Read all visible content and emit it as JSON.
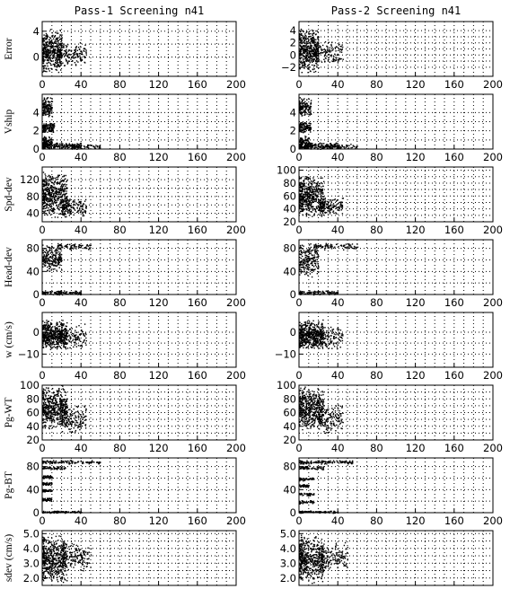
{
  "chart_data": {
    "type": "scatter",
    "columns": [
      {
        "title": "Pass-1 Screening n41"
      },
      {
        "title": "Pass-2 Screening n41"
      }
    ],
    "x_ticks": [
      "0",
      "40",
      "80",
      "120",
      "160",
      "200"
    ],
    "xlim": [
      0,
      200
    ],
    "grid": true,
    "rows": [
      {
        "ylabel": "Error",
        "panels": [
          {
            "ylim": [
              -3,
              5.5
            ],
            "y_ticks": [
              {
                "v": 4,
                "t": "4"
              },
              {
                "v": 0,
                "t": "0"
              }
            ],
            "clusters": [
              {
                "n": 420,
                "x": [
                  0,
                  20
                ],
                "y": [
                  -2.5,
                  4.5
                ]
              },
              {
                "n": 160,
                "x": [
                  15,
                  45
                ],
                "y": [
                  -1.5,
                  2.5
                ]
              }
            ]
          },
          {
            "ylim": [
              -3.5,
              5.5
            ],
            "y_ticks": [
              {
                "v": 4,
                "t": "4"
              },
              {
                "v": 2,
                "t": "2"
              },
              {
                "v": 0,
                "t": "0"
              },
              {
                "v": -2,
                "t": "−2"
              }
            ],
            "clusters": [
              {
                "n": 420,
                "x": [
                  0,
                  20
                ],
                "y": [
                  -3,
                  4.5
                ]
              },
              {
                "n": 160,
                "x": [
                  15,
                  45
                ],
                "y": [
                  -1.5,
                  2.5
                ]
              }
            ]
          }
        ]
      },
      {
        "ylabel": "Vship",
        "panels": [
          {
            "ylim": [
              0,
              6
            ],
            "y_ticks": [
              {
                "v": 0,
                "t": "0"
              },
              {
                "v": 2,
                "t": "2"
              },
              {
                "v": 4,
                "t": "4"
              }
            ],
            "clusters": [
              {
                "n": 140,
                "x": [
                  0,
                  10
                ],
                "y": [
                  3.5,
                  5.8
                ]
              },
              {
                "n": 110,
                "x": [
                  0,
                  12
                ],
                "y": [
                  1.8,
                  3.0
                ]
              },
              {
                "n": 90,
                "x": [
                  0,
                  10
                ],
                "y": [
                  0.3,
                  1.5
                ]
              },
              {
                "n": 200,
                "x": [
                  0,
                  40
                ],
                "y": [
                  0.0,
                  0.8
                ]
              },
              {
                "n": 60,
                "x": [
                  30,
                  60
                ],
                "y": [
                  0.0,
                  0.6
                ]
              }
            ]
          },
          {
            "ylim": [
              0,
              6
            ],
            "y_ticks": [
              {
                "v": 0,
                "t": "0"
              },
              {
                "v": 2,
                "t": "2"
              },
              {
                "v": 4,
                "t": "4"
              }
            ],
            "clusters": [
              {
                "n": 140,
                "x": [
                  0,
                  12
                ],
                "y": [
                  3.5,
                  5.8
                ]
              },
              {
                "n": 110,
                "x": [
                  0,
                  12
                ],
                "y": [
                  1.8,
                  3.0
                ]
              },
              {
                "n": 90,
                "x": [
                  0,
                  10
                ],
                "y": [
                  0.3,
                  1.5
                ]
              },
              {
                "n": 200,
                "x": [
                  0,
                  40
                ],
                "y": [
                  0.0,
                  0.8
                ]
              },
              {
                "n": 60,
                "x": [
                  30,
                  60
                ],
                "y": [
                  0.0,
                  0.6
                ]
              }
            ]
          }
        ]
      },
      {
        "ylabel": "Spd-dev",
        "panels": [
          {
            "ylim": [
              20,
              150
            ],
            "y_ticks": [
              {
                "v": 40,
                "t": "40"
              },
              {
                "v": 80,
                "t": "80"
              },
              {
                "v": 120,
                "t": "120"
              }
            ],
            "clusters": [
              {
                "n": 480,
                "x": [
                  0,
                  25
                ],
                "y": [
                  30,
                  140
                ]
              },
              {
                "n": 160,
                "x": [
                  20,
                  45
                ],
                "y": [
                  30,
                  80
                ]
              }
            ]
          },
          {
            "ylim": [
              20,
              105
            ],
            "y_ticks": [
              {
                "v": 20,
                "t": "20"
              },
              {
                "v": 40,
                "t": "40"
              },
              {
                "v": 60,
                "t": "60"
              },
              {
                "v": 80,
                "t": "80"
              },
              {
                "v": 100,
                "t": "100"
              }
            ],
            "clusters": [
              {
                "n": 480,
                "x": [
                  0,
                  25
                ],
                "y": [
                  25,
                  95
                ]
              },
              {
                "n": 160,
                "x": [
                  20,
                  45
                ],
                "y": [
                  30,
                  60
                ]
              }
            ]
          }
        ]
      },
      {
        "ylabel": "Head-dev",
        "panels": [
          {
            "ylim": [
              0,
              95
            ],
            "y_ticks": [
              {
                "v": 0,
                "t": "0"
              },
              {
                "v": 40,
                "t": "40"
              },
              {
                "v": 80,
                "t": "80"
              }
            ],
            "clusters": [
              {
                "n": 220,
                "x": [
                  0,
                  20
                ],
                "y": [
                  40,
                  90
                ]
              },
              {
                "n": 80,
                "x": [
                  15,
                  50
                ],
                "y": [
                  78,
                  90
                ]
              },
              {
                "n": 120,
                "x": [
                  0,
                  40
                ],
                "y": [
                  0,
                  8
                ]
              }
            ]
          },
          {
            "ylim": [
              0,
              95
            ],
            "y_ticks": [
              {
                "v": 0,
                "t": "0"
              },
              {
                "v": 40,
                "t": "40"
              },
              {
                "v": 80,
                "t": "80"
              }
            ],
            "clusters": [
              {
                "n": 220,
                "x": [
                  0,
                  20
                ],
                "y": [
                  30,
                  90
                ]
              },
              {
                "n": 90,
                "x": [
                  15,
                  60
                ],
                "y": [
                  78,
                  90
                ]
              },
              {
                "n": 110,
                "x": [
                  0,
                  40
                ],
                "y": [
                  0,
                  8
                ]
              }
            ]
          }
        ]
      },
      {
        "ylabel": "w (cm/s)",
        "panels": [
          {
            "ylim": [
              -16,
              9
            ],
            "y_ticks": [
              {
                "v": 0,
                "t": "0"
              },
              {
                "v": -10,
                "t": "−10"
              }
            ],
            "clusters": [
              {
                "n": 480,
                "x": [
                  0,
                  25
                ],
                "y": [
                  -8,
                  6
                ]
              },
              {
                "n": 160,
                "x": [
                  15,
                  45
                ],
                "y": [
                  -8,
                  4
                ]
              }
            ]
          },
          {
            "ylim": [
              -16,
              9
            ],
            "y_ticks": [
              {
                "v": 0,
                "t": "0"
              },
              {
                "v": -10,
                "t": "−10"
              }
            ],
            "clusters": [
              {
                "n": 480,
                "x": [
                  0,
                  25
                ],
                "y": [
                  -8,
                  6
                ]
              },
              {
                "n": 160,
                "x": [
                  15,
                  45
                ],
                "y": [
                  -8,
                  4
                ]
              }
            ]
          }
        ]
      },
      {
        "ylabel": "Pg-WT",
        "panels": [
          {
            "ylim": [
              20,
              100
            ],
            "y_ticks": [
              {
                "v": 20,
                "t": "20"
              },
              {
                "v": 40,
                "t": "40"
              },
              {
                "v": 60,
                "t": "60"
              },
              {
                "v": 80,
                "t": "80"
              },
              {
                "v": 100,
                "t": "100"
              }
            ],
            "clusters": [
              {
                "n": 480,
                "x": [
                  0,
                  25
                ],
                "y": [
                  35,
                  100
                ]
              },
              {
                "n": 160,
                "x": [
                  20,
                  45
                ],
                "y": [
                  30,
                  75
                ]
              }
            ]
          },
          {
            "ylim": [
              20,
              100
            ],
            "y_ticks": [
              {
                "v": 20,
                "t": "20"
              },
              {
                "v": 40,
                "t": "40"
              },
              {
                "v": 60,
                "t": "60"
              },
              {
                "v": 80,
                "t": "80"
              },
              {
                "v": 100,
                "t": "100"
              }
            ],
            "clusters": [
              {
                "n": 480,
                "x": [
                  0,
                  25
                ],
                "y": [
                  35,
                  100
                ]
              },
              {
                "n": 160,
                "x": [
                  20,
                  45
                ],
                "y": [
                  30,
                  75
                ]
              }
            ]
          }
        ]
      },
      {
        "ylabel": "Pg-BT",
        "panels": [
          {
            "ylim": [
              0,
              95
            ],
            "y_ticks": [
              {
                "v": 0,
                "t": "0"
              },
              {
                "v": 40,
                "t": "40"
              },
              {
                "v": 80,
                "t": "80"
              }
            ],
            "clusters": [
              {
                "n": 120,
                "x": [
                  0,
                  60
                ],
                "y": [
                  85,
                  92
                ]
              },
              {
                "n": 60,
                "x": [
                  0,
                  25
                ],
                "y": [
                  75,
                  82
                ]
              },
              {
                "n": 40,
                "x": [
                  0,
                  10
                ],
                "y": [
                  60,
                  66
                ]
              },
              {
                "n": 40,
                "x": [
                  0,
                  10
                ],
                "y": [
                  48,
                  54
                ]
              },
              {
                "n": 40,
                "x": [
                  0,
                  10
                ],
                "y": [
                  36,
                  42
                ]
              },
              {
                "n": 40,
                "x": [
                  0,
                  10
                ],
                "y": [
                  20,
                  27
                ]
              },
              {
                "n": 100,
                "x": [
                  0,
                  40
                ],
                "y": [
                  0,
                  4
                ]
              }
            ]
          },
          {
            "ylim": [
              0,
              95
            ],
            "y_ticks": [
              {
                "v": 0,
                "t": "0"
              },
              {
                "v": 40,
                "t": "40"
              },
              {
                "v": 80,
                "t": "80"
              }
            ],
            "clusters": [
              {
                "n": 130,
                "x": [
                  0,
                  55
                ],
                "y": [
                  85,
                  92
                ]
              },
              {
                "n": 60,
                "x": [
                  0,
                  25
                ],
                "y": [
                  75,
                  82
                ]
              },
              {
                "n": 50,
                "x": [
                  0,
                  15
                ],
                "y": [
                  56,
                  62
                ]
              },
              {
                "n": 40,
                "x": [
                  0,
                  10
                ],
                "y": [
                  44,
                  50
                ]
              },
              {
                "n": 40,
                "x": [
                  0,
                  15
                ],
                "y": [
                  30,
                  36
                ]
              },
              {
                "n": 40,
                "x": [
                  0,
                  15
                ],
                "y": [
                  16,
                  22
                ]
              },
              {
                "n": 100,
                "x": [
                  0,
                  40
                ],
                "y": [
                  0,
                  4
                ]
              }
            ]
          }
        ]
      },
      {
        "ylabel": "sdev (cm/s)",
        "panels": [
          {
            "ylim": [
              1.5,
              5.2
            ],
            "y_ticks": [
              {
                "v": 2,
                "t": "2.0"
              },
              {
                "v": 3,
                "t": "3.0"
              },
              {
                "v": 4,
                "t": "4.0"
              },
              {
                "v": 5,
                "t": "5.0"
              }
            ],
            "clusters": [
              {
                "n": 480,
                "x": [
                  0,
                  25
                ],
                "y": [
                  1.6,
                  5.0
                ]
              },
              {
                "n": 160,
                "x": [
                  20,
                  50
                ],
                "y": [
                  2.5,
                  4.5
                ]
              }
            ]
          },
          {
            "ylim": [
              1.5,
              5.2
            ],
            "y_ticks": [
              {
                "v": 2,
                "t": "2.0"
              },
              {
                "v": 3,
                "t": "3.0"
              },
              {
                "v": 4,
                "t": "4.0"
              },
              {
                "v": 5,
                "t": "5.0"
              }
            ],
            "clusters": [
              {
                "n": 480,
                "x": [
                  0,
                  25
                ],
                "y": [
                  1.6,
                  5.0
                ]
              },
              {
                "n": 160,
                "x": [
                  20,
                  50
                ],
                "y": [
                  2.5,
                  4.5
                ]
              }
            ]
          }
        ]
      }
    ]
  }
}
